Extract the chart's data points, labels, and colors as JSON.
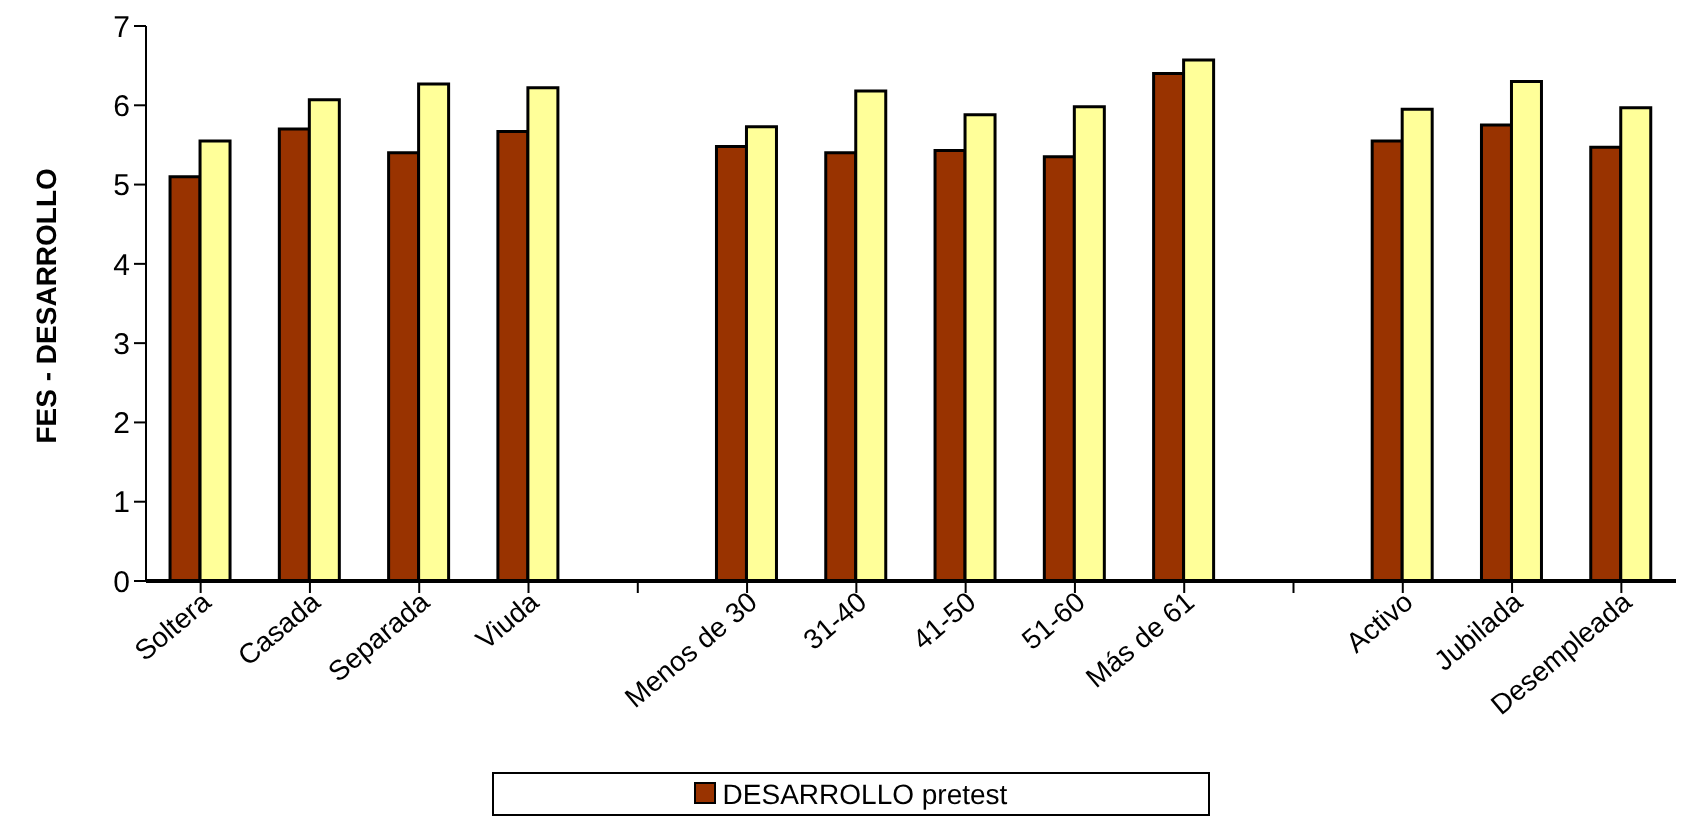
{
  "chart_data": {
    "type": "bar",
    "ylabel": "FES - DESARROLLO",
    "categories": [
      "Soltera",
      "Casada",
      "Separada",
      "Viuda",
      null,
      "Menos de 30",
      "31-40",
      "41-50",
      "51-60",
      "Más de 61",
      null,
      "Activo",
      "Jubilada",
      "Desempleada"
    ],
    "series": [
      {
        "name": "DESARROLLO pretest",
        "color": "#993300",
        "values": [
          5.1,
          5.7,
          5.4,
          5.67,
          null,
          5.48,
          5.4,
          5.43,
          5.35,
          6.4,
          null,
          5.55,
          5.75,
          5.47
        ]
      },
      {
        "color": "#ffff99",
        "values": [
          5.55,
          6.07,
          6.27,
          6.22,
          null,
          5.73,
          6.18,
          5.88,
          5.98,
          6.57,
          null,
          5.95,
          6.3,
          5.97
        ]
      }
    ],
    "ylim": [
      0,
      7
    ],
    "yticks": [
      0,
      1,
      2,
      3,
      4,
      5,
      6,
      7
    ],
    "grid": false,
    "legend": "bottom"
  }
}
